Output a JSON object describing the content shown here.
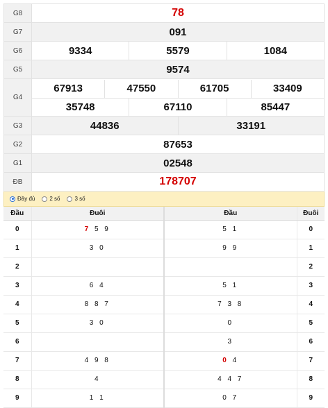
{
  "prizes": {
    "g8": {
      "label": "G8",
      "numbers": [
        "78"
      ]
    },
    "g7": {
      "label": "G7",
      "numbers": [
        "091"
      ]
    },
    "g6": {
      "label": "G6",
      "numbers": [
        "9334",
        "5579",
        "1084"
      ]
    },
    "g5": {
      "label": "G5",
      "numbers": [
        "9574"
      ]
    },
    "g4": {
      "label": "G4",
      "row1": [
        "67913",
        "47550",
        "61705",
        "33409"
      ],
      "row2": [
        "35748",
        "67110",
        "85447"
      ]
    },
    "g3": {
      "label": "G3",
      "numbers": [
        "44836",
        "33191"
      ]
    },
    "g2": {
      "label": "G2",
      "numbers": [
        "87653"
      ]
    },
    "g1": {
      "label": "G1",
      "numbers": [
        "02548"
      ]
    },
    "db": {
      "label": "ĐB",
      "numbers": [
        "178707"
      ]
    }
  },
  "options": {
    "full": "Đầy đủ",
    "two": "2 số",
    "three": "3 số",
    "selected": "full"
  },
  "loto": {
    "headers": {
      "dau_left": "Đầu",
      "duoi_left": "Đuôi",
      "dau_right": "Đầu",
      "duoi_right": "Đuôi"
    },
    "rows": [
      {
        "k": "0",
        "tails": "7 5 9",
        "tails_hl": "7",
        "tails_rest": " 5 9",
        "heads": "5 1",
        "heads_hl": "",
        "heads_rest": "5 1",
        "k2": "0"
      },
      {
        "k": "1",
        "tails_hl": "",
        "tails_rest": "3 0",
        "heads_hl": "",
        "heads_rest": "9 9",
        "k2": "1"
      },
      {
        "k": "2",
        "tails_hl": "",
        "tails_rest": "",
        "heads_hl": "",
        "heads_rest": "",
        "k2": "2"
      },
      {
        "k": "3",
        "tails_hl": "",
        "tails_rest": "6 4",
        "heads_hl": "",
        "heads_rest": "5 1",
        "k2": "3"
      },
      {
        "k": "4",
        "tails_hl": "",
        "tails_rest": "8 8 7",
        "heads_hl": "",
        "heads_rest": "7 3 8",
        "k2": "4"
      },
      {
        "k": "5",
        "tails_hl": "",
        "tails_rest": "3 0",
        "heads_hl": "",
        "heads_rest": "0",
        "k2": "5"
      },
      {
        "k": "6",
        "tails_hl": "",
        "tails_rest": "",
        "heads_hl": "",
        "heads_rest": "3",
        "k2": "6"
      },
      {
        "k": "7",
        "tails_hl": "",
        "tails_rest": "4 9 8",
        "heads_hl": "0",
        "heads_rest": " 4",
        "k2": "7"
      },
      {
        "k": "8",
        "tails_hl": "",
        "tails_rest": "4",
        "heads_hl": "",
        "heads_rest": "4 4 7",
        "k2": "8"
      },
      {
        "k": "9",
        "tails_hl": "",
        "tails_rest": "1 1",
        "heads_hl": "",
        "heads_rest": "0 7",
        "k2": "9"
      }
    ]
  },
  "colors": {
    "accent_red": "#d40000",
    "options_bg": "#fdf0c2",
    "radio_blue": "#2a6fd6"
  }
}
